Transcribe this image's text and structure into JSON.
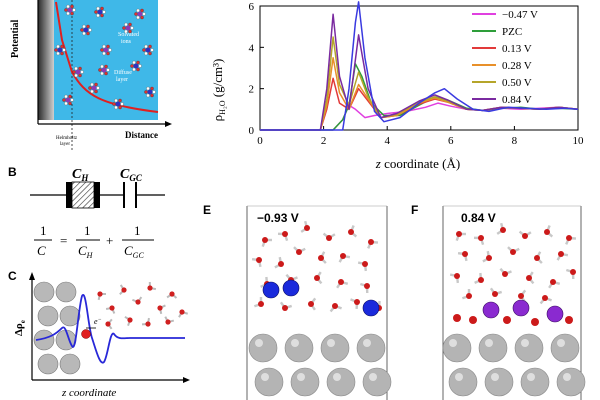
{
  "panelA": {
    "y_axis_label": "Potential",
    "x_axis_label": "Distance",
    "solvated_label": [
      "Solvated",
      "ions"
    ],
    "diffuse_label": [
      "Diffuse",
      "layer"
    ],
    "helmholtz_label": [
      "Helmholtz",
      "layer"
    ],
    "colors": {
      "electrode": "#6a6a6a",
      "solution": "#3fb8e8",
      "curve": "#e02020"
    }
  },
  "panelB": {
    "letter": "B",
    "cap_h": "C",
    "cap_h_sub": "H",
    "cap_gc": "C",
    "cap_gc_sub": "GC",
    "eq_one": "1",
    "eq_C": "C",
    "eq_eq": "=",
    "eq_plus": "+",
    "eq_H_sub": "H",
    "eq_GC_sub": "GC"
  },
  "panelC": {
    "letter": "C",
    "y_axis_label": "Δρ",
    "y_axis_sub": "e",
    "x_axis_label": "z coordinate",
    "electron_label": "e",
    "electron_sup": "−"
  },
  "panelD": {
    "ylabel": "ρ",
    "ylabel_sub": "H₂O",
    "ylabel_unit": " (g/cm³)",
    "xlabel_prefix": "z",
    "xlabel_rest": " coordinate (Å)"
  },
  "panelE": {
    "letter": "E",
    "potential": "−0.93 V"
  },
  "panelF": {
    "letter": "F",
    "potential": "0.84 V"
  },
  "chart_data": {
    "type": "line",
    "title": "",
    "xlabel": "z coordinate (Å)",
    "ylabel": "ρH2O (g/cm³)",
    "xlim": [
      0,
      10
    ],
    "ylim": [
      0,
      6
    ],
    "xticks": [
      "0",
      "2",
      "4",
      "6",
      "8",
      "10"
    ],
    "yticks": [
      "0",
      "2",
      "4",
      "6"
    ],
    "legend_placement": "top-right",
    "series": [
      {
        "name": "−0.47 V",
        "color": "#e040e0",
        "points": [
          [
            0,
            0
          ],
          [
            2.3,
            0
          ],
          [
            2.6,
            0.5
          ],
          [
            2.8,
            1.2
          ],
          [
            3.0,
            1.0
          ],
          [
            3.3,
            0.6
          ],
          [
            3.6,
            0.7
          ],
          [
            4.0,
            0.8
          ],
          [
            4.6,
            0.9
          ],
          [
            5.2,
            1.1
          ],
          [
            5.6,
            1.3
          ],
          [
            6.0,
            1.15
          ],
          [
            6.5,
            1.0
          ],
          [
            7.0,
            0.95
          ],
          [
            7.6,
            1.05
          ],
          [
            8.2,
            1.0
          ],
          [
            8.8,
            1.05
          ],
          [
            9.4,
            1.1
          ],
          [
            10,
            1.0
          ]
        ]
      },
      {
        "name": "PZC",
        "color": "#2e9e3a",
        "points": [
          [
            0,
            0
          ],
          [
            2.3,
            0
          ],
          [
            2.6,
            0.5
          ],
          [
            2.8,
            1.2
          ],
          [
            3.0,
            3.2
          ],
          [
            3.2,
            2.6
          ],
          [
            3.5,
            1.3
          ],
          [
            3.9,
            0.7
          ],
          [
            4.4,
            0.7
          ],
          [
            5.0,
            1.2
          ],
          [
            5.5,
            1.6
          ],
          [
            5.9,
            1.45
          ],
          [
            6.5,
            1.05
          ],
          [
            7.0,
            0.95
          ],
          [
            7.6,
            1.05
          ],
          [
            8.2,
            1.1
          ],
          [
            8.8,
            1.0
          ],
          [
            9.4,
            1.05
          ],
          [
            10,
            1.0
          ]
        ]
      },
      {
        "name": "0.13 V",
        "color": "#e23a3a",
        "points": [
          [
            0,
            0
          ],
          [
            1.9,
            0
          ],
          [
            2.1,
            1.0
          ],
          [
            2.3,
            2.5
          ],
          [
            2.5,
            1.3
          ],
          [
            2.8,
            1.0
          ],
          [
            3.1,
            2.0
          ],
          [
            3.4,
            1.4
          ],
          [
            3.8,
            0.6
          ],
          [
            4.3,
            0.7
          ],
          [
            5.0,
            1.25
          ],
          [
            5.5,
            1.5
          ],
          [
            5.9,
            1.35
          ],
          [
            6.5,
            1.0
          ],
          [
            7.0,
            0.95
          ],
          [
            7.6,
            1.1
          ],
          [
            8.2,
            1.05
          ],
          [
            8.8,
            1.0
          ],
          [
            9.4,
            1.1
          ],
          [
            10,
            1.0
          ]
        ]
      },
      {
        "name": "0.28 V",
        "color": "#e8902a",
        "points": [
          [
            0,
            0
          ],
          [
            1.9,
            0
          ],
          [
            2.1,
            1.2
          ],
          [
            2.3,
            3.5
          ],
          [
            2.5,
            1.8
          ],
          [
            2.8,
            1.0
          ],
          [
            3.1,
            2.2
          ],
          [
            3.4,
            1.5
          ],
          [
            3.8,
            0.6
          ],
          [
            4.3,
            0.7
          ],
          [
            5.0,
            1.3
          ],
          [
            5.5,
            1.55
          ],
          [
            5.9,
            1.35
          ],
          [
            6.5,
            1.0
          ],
          [
            7.0,
            0.95
          ],
          [
            7.6,
            1.1
          ],
          [
            8.2,
            1.05
          ],
          [
            8.8,
            1.0
          ],
          [
            9.4,
            1.1
          ],
          [
            10,
            1.0
          ]
        ]
      },
      {
        "name": "0.50 V",
        "color": "#b5a52a",
        "points": [
          [
            0,
            0
          ],
          [
            1.9,
            0
          ],
          [
            2.1,
            1.5
          ],
          [
            2.3,
            4.5
          ],
          [
            2.5,
            2.2
          ],
          [
            2.8,
            1.2
          ],
          [
            3.1,
            2.8
          ],
          [
            3.4,
            1.6
          ],
          [
            3.8,
            0.6
          ],
          [
            4.3,
            0.75
          ],
          [
            5.0,
            1.35
          ],
          [
            5.5,
            1.6
          ],
          [
            5.9,
            1.4
          ],
          [
            6.5,
            1.0
          ],
          [
            7.0,
            0.95
          ],
          [
            7.6,
            1.1
          ],
          [
            8.2,
            1.05
          ],
          [
            8.8,
            1.0
          ],
          [
            9.4,
            1.1
          ],
          [
            10,
            1.0
          ]
        ]
      },
      {
        "name": "0.84 V",
        "color": "#7a2aa0",
        "points": [
          [
            0,
            0
          ],
          [
            1.9,
            0
          ],
          [
            2.1,
            2.0
          ],
          [
            2.3,
            5.6
          ],
          [
            2.5,
            2.6
          ],
          [
            2.8,
            1.0
          ],
          [
            3.1,
            4.6
          ],
          [
            3.4,
            2.0
          ],
          [
            3.8,
            0.6
          ],
          [
            4.3,
            0.8
          ],
          [
            5.0,
            1.4
          ],
          [
            5.5,
            1.7
          ],
          [
            5.9,
            1.45
          ],
          [
            6.5,
            1.0
          ],
          [
            7.0,
            0.95
          ],
          [
            7.6,
            1.1
          ],
          [
            8.2,
            1.05
          ],
          [
            8.8,
            1.0
          ],
          [
            9.4,
            1.1
          ],
          [
            10,
            1.0
          ]
        ]
      },
      {
        "name": "",
        "color": "#3a3ae0",
        "points": [
          [
            0,
            0
          ],
          [
            2.6,
            0
          ],
          [
            2.8,
            2.0
          ],
          [
            3.0,
            5.2
          ],
          [
            3.1,
            6.2
          ],
          [
            3.3,
            3.5
          ],
          [
            3.6,
            0.9
          ],
          [
            3.9,
            0.4
          ],
          [
            4.4,
            0.6
          ],
          [
            5.0,
            1.3
          ],
          [
            5.5,
            1.8
          ],
          [
            5.8,
            2.0
          ],
          [
            6.2,
            1.5
          ],
          [
            6.7,
            1.0
          ],
          [
            7.2,
            0.9
          ],
          [
            7.8,
            1.1
          ],
          [
            8.4,
            1.05
          ],
          [
            9.0,
            1.0
          ],
          [
            9.6,
            1.05
          ],
          [
            10,
            1.0
          ]
        ]
      }
    ]
  }
}
